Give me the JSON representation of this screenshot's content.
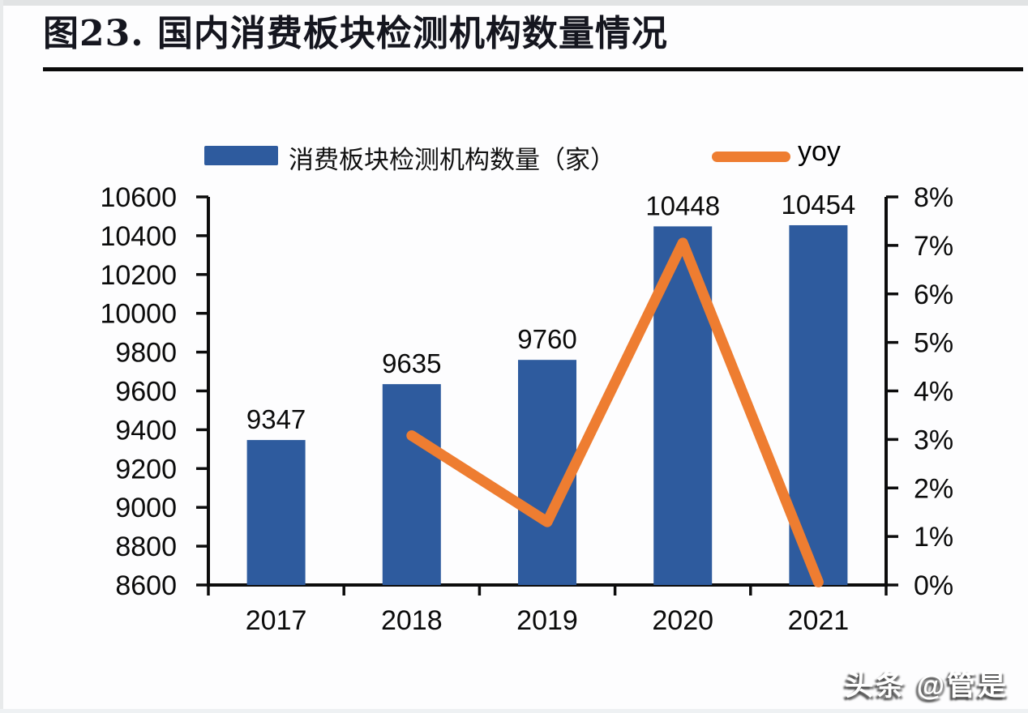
{
  "header": {
    "title": "图23. 国内消费板块检测机构数量情况"
  },
  "chart_data": {
    "type": "bar",
    "subtype": "combo-bar-line",
    "title": "图23. 国内消费板块检测机构数量情况",
    "categories": [
      "2017",
      "2018",
      "2019",
      "2020",
      "2021"
    ],
    "series": [
      {
        "name": "消费板块检测机构数量（家）",
        "type": "bar",
        "axis": "left",
        "values": [
          9347,
          9635,
          9760,
          10448,
          10454
        ],
        "data_labels": [
          "9347",
          "9635",
          "9760",
          "10448",
          "10454"
        ],
        "color": "#2E5B9E"
      },
      {
        "name": "yoy",
        "type": "line",
        "axis": "right",
        "values": [
          null,
          3.08,
          1.3,
          7.05,
          0.06
        ],
        "color": "#EE7D31"
      }
    ],
    "left_axis": {
      "min": 8600,
      "max": 10600,
      "step": 200,
      "tick_labels": [
        "8600",
        "8800",
        "9000",
        "9200",
        "9400",
        "9600",
        "9800",
        "10000",
        "10200",
        "10400",
        "10600"
      ]
    },
    "right_axis": {
      "min": 0,
      "max": 8,
      "step": 1,
      "tick_labels": [
        "0%",
        "1%",
        "2%",
        "3%",
        "4%",
        "5%",
        "6%",
        "7%",
        "8%"
      ]
    },
    "grid": "off",
    "legend_position": "top"
  },
  "watermark": {
    "text": "头条 @管是"
  },
  "colors": {
    "bar": "#2E5B9E",
    "line": "#EE7D31",
    "axis": "#0C0C0C",
    "title": "#15161F"
  }
}
